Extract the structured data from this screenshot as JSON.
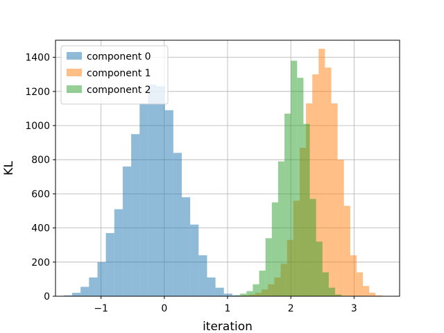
{
  "chart_data": {
    "type": "histogram",
    "xlabel": "iteration",
    "ylabel": "KL",
    "xlim": [
      -1.72,
      3.72
    ],
    "ylim": [
      0,
      1500
    ],
    "xticks": [
      -1,
      0,
      1,
      2,
      3
    ],
    "xtick_labels": [
      "−1",
      "0",
      "1",
      "2",
      "3"
    ],
    "yticks": [
      0,
      200,
      400,
      600,
      800,
      1000,
      1200,
      1400
    ],
    "yticks_labels": [
      "0",
      "200",
      "400",
      "600",
      "800",
      "1000",
      "1200",
      "1400"
    ],
    "grid": true,
    "legend": "top-left",
    "series": [
      {
        "name": "component 0",
        "color": "#1f77b4",
        "opacity": 0.5,
        "bin_start": -1.59,
        "bin_width": 0.1333,
        "counts": [
          5,
          20,
          55,
          110,
          200,
          370,
          510,
          760,
          950,
          1130,
          1240,
          1230,
          1090,
          840,
          580,
          420,
          240,
          110,
          50,
          15,
          5
        ]
      },
      {
        "name": "component 1",
        "color": "#ff7f0e",
        "opacity": 0.5,
        "bin_start": 1.24,
        "bin_width": 0.1,
        "counts": [
          5,
          10,
          20,
          40,
          70,
          110,
          190,
          330,
          560,
          870,
          1130,
          1300,
          1450,
          1340,
          1130,
          800,
          530,
          240,
          140,
          60,
          20,
          5
        ]
      },
      {
        "name": "component 2",
        "color": "#2ca02c",
        "opacity": 0.5,
        "bin_start": 1.1,
        "bin_width": 0.1,
        "counts": [
          5,
          15,
          30,
          70,
          150,
          340,
          550,
          790,
          1070,
          1380,
          1280,
          1010,
          570,
          320,
          140,
          50,
          10
        ]
      }
    ]
  }
}
